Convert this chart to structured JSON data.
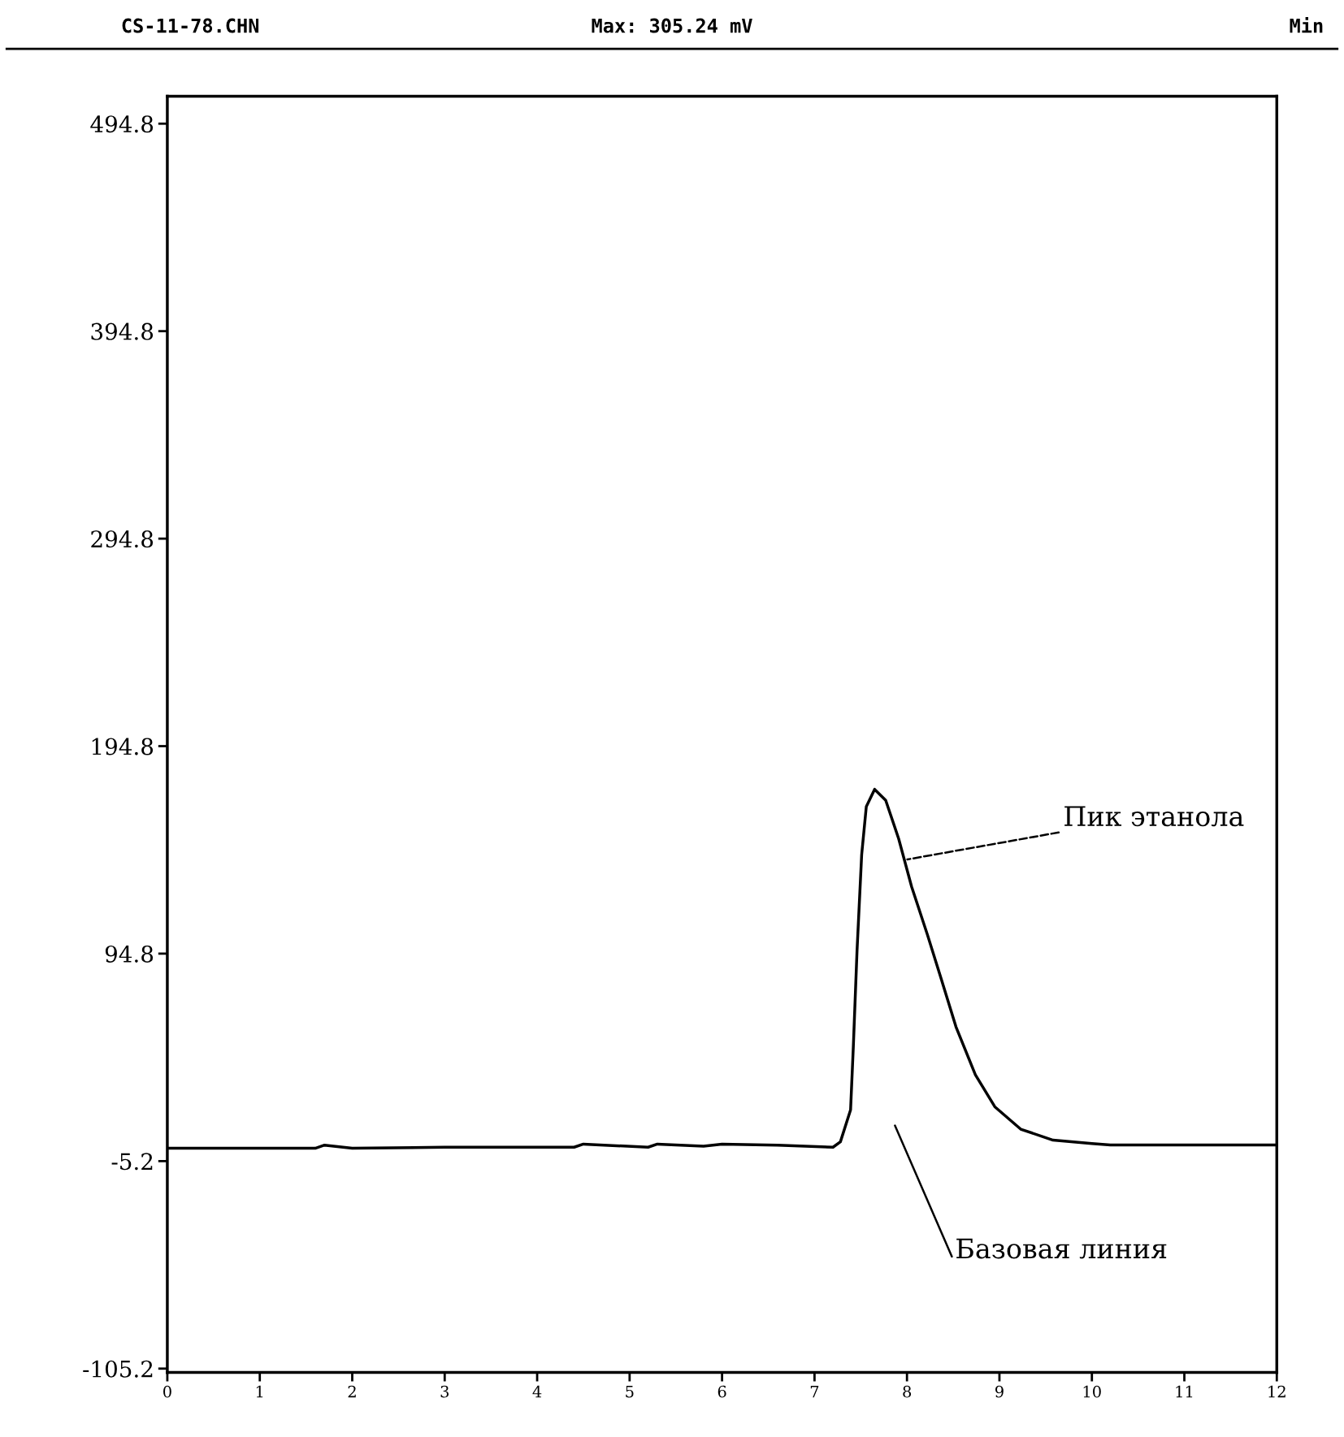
{
  "chart_data": {
    "type": "line",
    "annotations": [
      "CS-11-78.CHN",
      "Max: 305.24 mV",
      "Min",
      {
        "text": "Пик этанола",
        "x": 7.98,
        "y": 140
      },
      "Базовая линия"
    ],
    "series": [
      {
        "color": "#000000",
        "x": [
          0,
          0.5,
          1.0,
          1.6,
          1.7,
          2.0,
          3.0,
          4.4,
          4.5,
          5.2,
          5.3,
          5.8,
          6.0,
          6.6,
          6.9,
          7.2,
          7.28,
          7.39,
          7.42,
          7.46,
          7.51,
          7.56,
          7.65,
          7.77,
          7.91,
          8.05,
          8.22,
          8.36,
          8.53,
          8.74,
          8.95,
          9.23,
          9.58,
          10.0,
          10.2,
          11.0,
          12.0
        ],
        "values": [
          1.0,
          1.0,
          1.0,
          1.0,
          2.5,
          1.0,
          1.5,
          1.5,
          3.0,
          1.5,
          3.0,
          2.0,
          3.0,
          2.5,
          2.0,
          1.5,
          4.1,
          19.5,
          50.2,
          96.4,
          142.5,
          165.6,
          174.0,
          168.7,
          150.2,
          127.1,
          104.1,
          84.1,
          59.5,
          36.4,
          21.0,
          10.2,
          4.9,
          3.3,
          2.6,
          2.6,
          2.6
        ]
      }
    ],
    "xlim": [
      0,
      12
    ],
    "xticks": [
      0,
      1,
      2,
      3,
      4,
      5,
      6,
      7,
      8,
      9,
      10,
      11,
      12
    ],
    "ylim": [
      -107.0,
      508.0
    ],
    "yticks": [
      -105.2,
      -5.2,
      94.8,
      194.8,
      294.8,
      394.8,
      494.8
    ],
    "grid": false,
    "legend": false,
    "marker": "none",
    "line_style": "solid"
  }
}
